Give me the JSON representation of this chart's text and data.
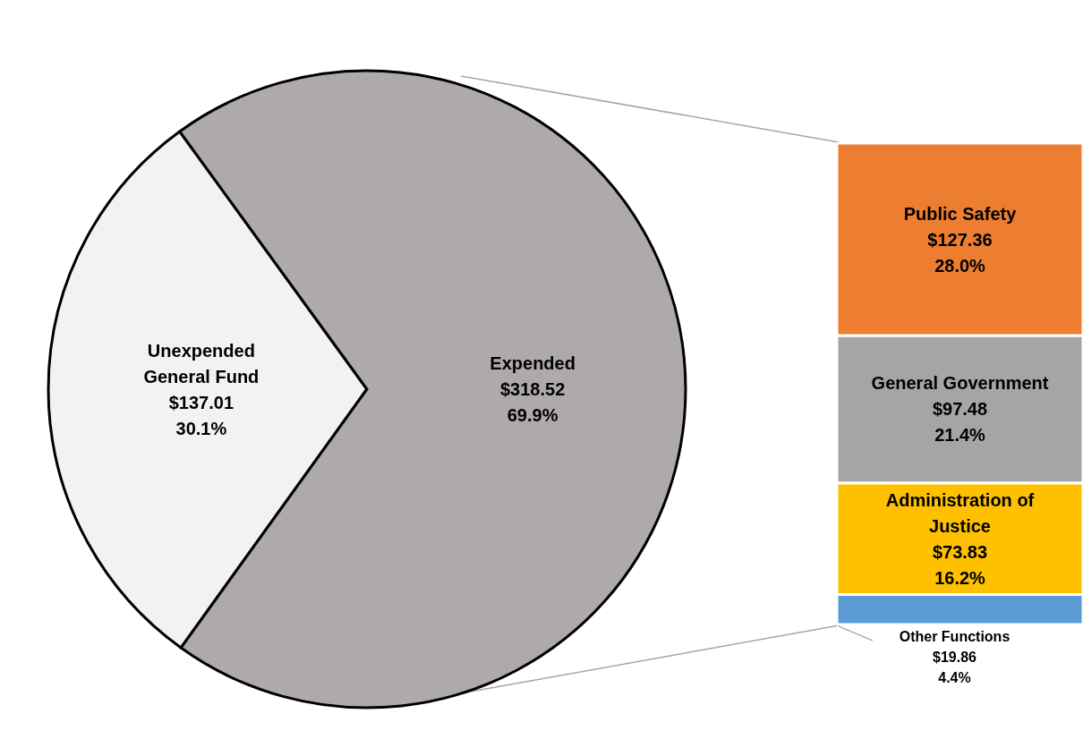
{
  "chart_data": [
    {
      "type": "pie",
      "categories": [
        "Unexpended General Fund",
        "Expended"
      ],
      "values": [
        137.01,
        318.52
      ],
      "colors": [
        "#f2f2f2",
        "#aeaaaa"
      ],
      "value_labels": [
        "$137.01 30.1%",
        "$318.52 69.9%"
      ]
    },
    {
      "type": "bar",
      "stacked": true,
      "categories": [
        null
      ],
      "series": [
        {
          "name": "Other Functions",
          "color": "#5b9bd5",
          "values": [
            19.86
          ],
          "value_labels": [
            "$19.86 4.4%"
          ]
        },
        {
          "name": "Administration of Justice",
          "color": "#ffc000",
          "values": [
            73.83
          ],
          "value_labels": [
            "$73.83 16.2%"
          ]
        },
        {
          "name": "General Government",
          "color": "#a5a5a5",
          "values": [
            97.48
          ],
          "value_labels": [
            "$97.48 21.4%"
          ]
        },
        {
          "name": "Public Safety",
          "color": "#ed7d31",
          "values": [
            127.36
          ],
          "value_labels": [
            "$127.36 28.0%"
          ]
        }
      ]
    }
  ]
}
